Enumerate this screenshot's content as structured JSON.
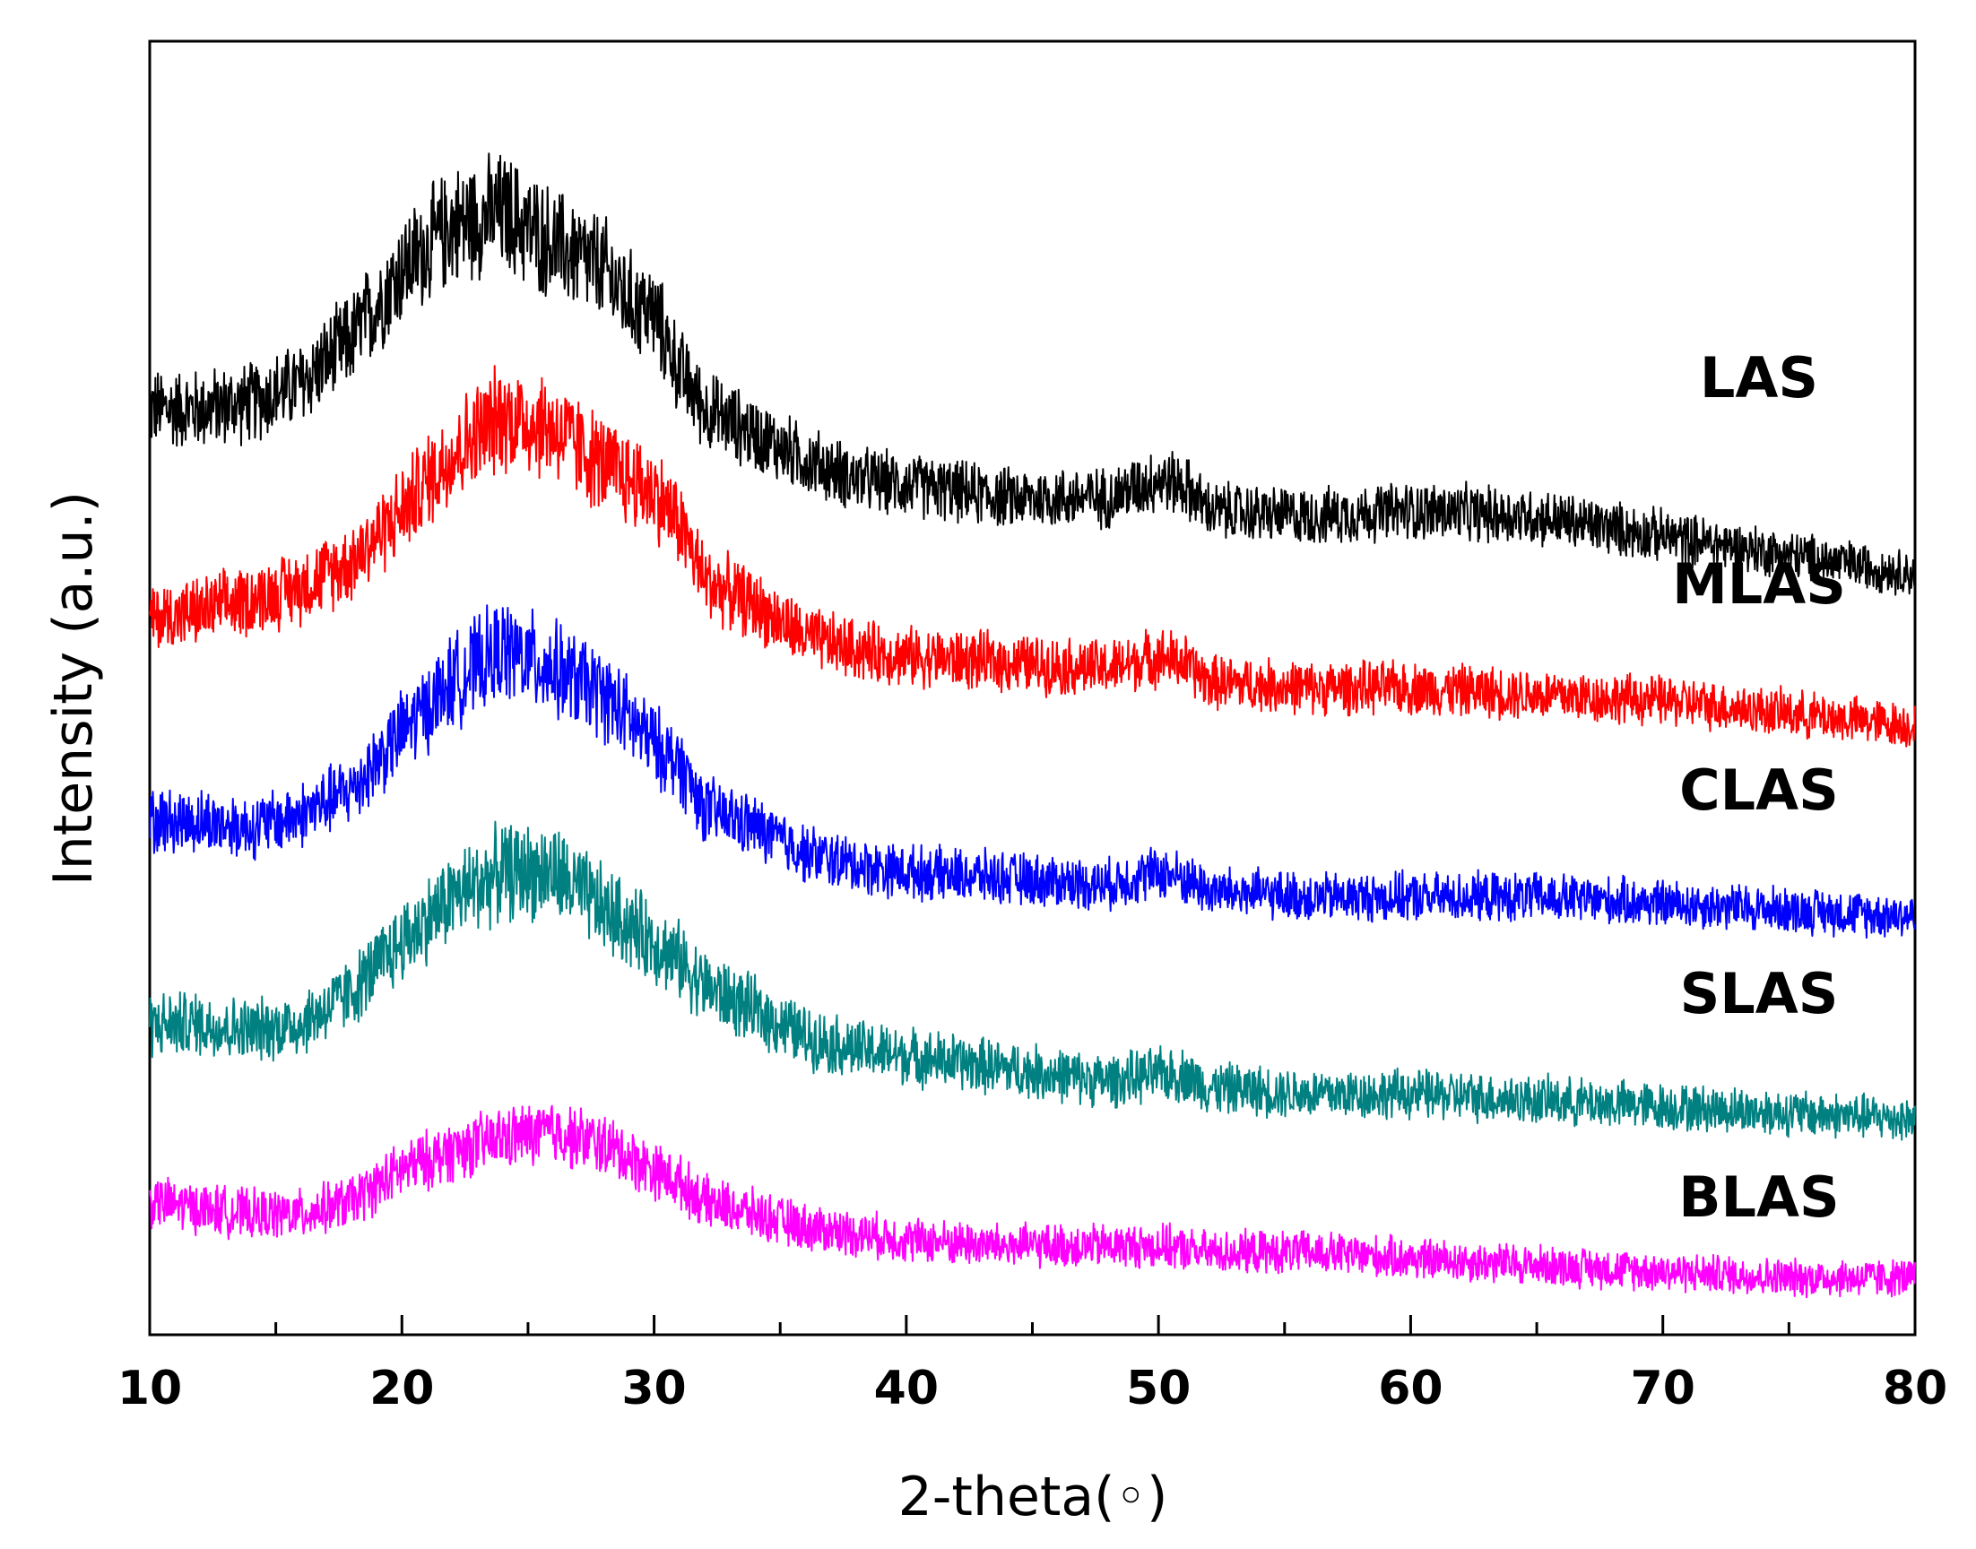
{
  "chart_data": {
    "type": "line",
    "title": "",
    "xlabel": "2-theta(◦)",
    "ylabel": "Intensity (a.u.)",
    "xlim": [
      10,
      80
    ],
    "ylim": [
      0,
      10.2
    ],
    "x_ticks": [
      10,
      20,
      30,
      40,
      50,
      60,
      70,
      80
    ],
    "x_tick_labels": [
      "10",
      "20",
      "30",
      "40",
      "50",
      "60",
      "70",
      "80"
    ],
    "y_ticks_shown": false,
    "grid": false,
    "legend": "inline labels on right",
    "series": [
      {
        "name": "LAS",
        "color": "#000000",
        "noise": 0.2,
        "points": [
          [
            10,
            7.3
          ],
          [
            12,
            7.3
          ],
          [
            14,
            7.35
          ],
          [
            16,
            7.5
          ],
          [
            18,
            7.85
          ],
          [
            20,
            8.4
          ],
          [
            22,
            8.75
          ],
          [
            24,
            8.85
          ],
          [
            26,
            8.6
          ],
          [
            28,
            8.4
          ],
          [
            29,
            8.15
          ],
          [
            30,
            8.05
          ],
          [
            31,
            7.6
          ],
          [
            32,
            7.3
          ],
          [
            34,
            7.1
          ],
          [
            36,
            6.9
          ],
          [
            38,
            6.75
          ],
          [
            40,
            6.7
          ],
          [
            44,
            6.6
          ],
          [
            48,
            6.6
          ],
          [
            50,
            6.75
          ],
          [
            51,
            6.7
          ],
          [
            52,
            6.5
          ],
          [
            56,
            6.45
          ],
          [
            60,
            6.5
          ],
          [
            65,
            6.45
          ],
          [
            70,
            6.3
          ],
          [
            75,
            6.15
          ],
          [
            80,
            6.0
          ]
        ]
      },
      {
        "name": "MLAS",
        "color": "#ff0000",
        "noise": 0.2,
        "points": [
          [
            10,
            5.65
          ],
          [
            12,
            5.7
          ],
          [
            14,
            5.8
          ],
          [
            16,
            5.9
          ],
          [
            18,
            6.1
          ],
          [
            20,
            6.5
          ],
          [
            22,
            6.95
          ],
          [
            24,
            7.25
          ],
          [
            26,
            7.15
          ],
          [
            28,
            6.85
          ],
          [
            30,
            6.65
          ],
          [
            31,
            6.4
          ],
          [
            32,
            5.95
          ],
          [
            34,
            5.75
          ],
          [
            36,
            5.5
          ],
          [
            38,
            5.4
          ],
          [
            40,
            5.35
          ],
          [
            44,
            5.3
          ],
          [
            48,
            5.25
          ],
          [
            50,
            5.35
          ],
          [
            51,
            5.3
          ],
          [
            52,
            5.15
          ],
          [
            56,
            5.1
          ],
          [
            60,
            5.1
          ],
          [
            65,
            5.05
          ],
          [
            70,
            5.0
          ],
          [
            75,
            4.9
          ],
          [
            80,
            4.8
          ]
        ]
      },
      {
        "name": "CLAS",
        "color": "#0000ff",
        "noise": 0.2,
        "points": [
          [
            10,
            4.05
          ],
          [
            12,
            4.05
          ],
          [
            14,
            4.0
          ],
          [
            16,
            4.1
          ],
          [
            18,
            4.3
          ],
          [
            20,
            4.75
          ],
          [
            22,
            5.15
          ],
          [
            24,
            5.4
          ],
          [
            26,
            5.25
          ],
          [
            28,
            5.05
          ],
          [
            30,
            4.65
          ],
          [
            31,
            4.5
          ],
          [
            32,
            4.15
          ],
          [
            34,
            4.0
          ],
          [
            36,
            3.8
          ],
          [
            38,
            3.7
          ],
          [
            40,
            3.65
          ],
          [
            44,
            3.6
          ],
          [
            48,
            3.55
          ],
          [
            50,
            3.65
          ],
          [
            51,
            3.6
          ],
          [
            52,
            3.5
          ],
          [
            56,
            3.45
          ],
          [
            60,
            3.45
          ],
          [
            65,
            3.45
          ],
          [
            70,
            3.4
          ],
          [
            75,
            3.35
          ],
          [
            80,
            3.3
          ]
        ]
      },
      {
        "name": "SLAS",
        "color": "#008080",
        "noise": 0.2,
        "points": [
          [
            10,
            2.45
          ],
          [
            12,
            2.45
          ],
          [
            14,
            2.4
          ],
          [
            16,
            2.45
          ],
          [
            18,
            2.7
          ],
          [
            20,
            3.1
          ],
          [
            22,
            3.45
          ],
          [
            24,
            3.65
          ],
          [
            26,
            3.65
          ],
          [
            28,
            3.35
          ],
          [
            30,
            3.1
          ],
          [
            31,
            2.95
          ],
          [
            32,
            2.75
          ],
          [
            34,
            2.55
          ],
          [
            36,
            2.35
          ],
          [
            38,
            2.25
          ],
          [
            40,
            2.2
          ],
          [
            44,
            2.1
          ],
          [
            48,
            2.0
          ],
          [
            50,
            2.05
          ],
          [
            51,
            2.05
          ],
          [
            52,
            1.95
          ],
          [
            56,
            1.9
          ],
          [
            60,
            1.9
          ],
          [
            65,
            1.85
          ],
          [
            70,
            1.8
          ],
          [
            75,
            1.75
          ],
          [
            80,
            1.7
          ]
        ]
      },
      {
        "name": "BLAS",
        "color": "#ff00ff",
        "noise": 0.17,
        "points": [
          [
            10,
            1.05
          ],
          [
            12,
            1.0
          ],
          [
            14,
            0.95
          ],
          [
            16,
            0.95
          ],
          [
            18,
            1.05
          ],
          [
            20,
            1.3
          ],
          [
            22,
            1.45
          ],
          [
            24,
            1.55
          ],
          [
            26,
            1.6
          ],
          [
            28,
            1.5
          ],
          [
            30,
            1.3
          ],
          [
            31,
            1.2
          ],
          [
            32,
            1.05
          ],
          [
            34,
            0.95
          ],
          [
            36,
            0.85
          ],
          [
            38,
            0.8
          ],
          [
            40,
            0.75
          ],
          [
            44,
            0.7
          ],
          [
            48,
            0.7
          ],
          [
            50,
            0.7
          ],
          [
            52,
            0.65
          ],
          [
            56,
            0.65
          ],
          [
            60,
            0.6
          ],
          [
            65,
            0.55
          ],
          [
            70,
            0.5
          ],
          [
            75,
            0.45
          ],
          [
            80,
            0.45
          ]
        ]
      }
    ]
  }
}
